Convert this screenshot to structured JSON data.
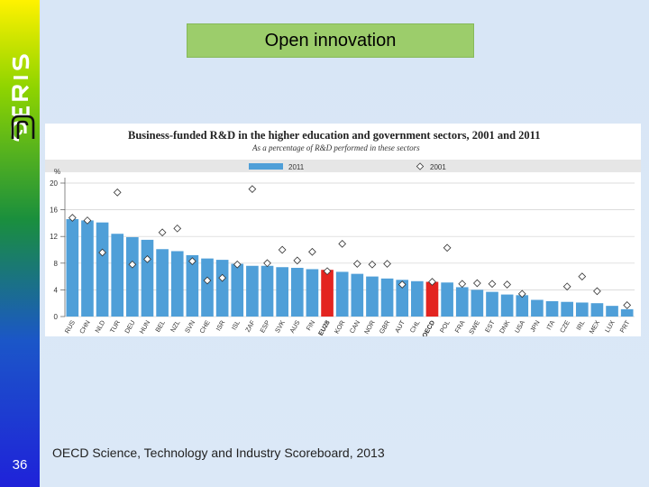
{
  "slide": {
    "title": "Open innovation",
    "number": "36",
    "source": "OECD Science, Technology and Industry Scoreboard, 2013",
    "brand": "CERIS"
  },
  "chart_data": {
    "type": "bar",
    "title": "Business-funded R&D in the higher education and government sectors, 2001 and 2011",
    "subtitle": "As a percentage of R&D performed in these sectors",
    "ylabel": "%",
    "ylim": [
      0,
      20
    ],
    "yticks": [
      0,
      4,
      8,
      12,
      16,
      20
    ],
    "legend_position": "top",
    "categories": [
      "RUS",
      "CHN",
      "NLD",
      "TUR",
      "DEU",
      "HUN",
      "BEL",
      "NZL",
      "SVN",
      "CHE",
      "ISR",
      "ISL",
      "ZAF",
      "ESP",
      "SVK",
      "AUS",
      "FIN",
      "EU28",
      "KOR",
      "CAN",
      "NOR",
      "GBR",
      "AUT",
      "CHL",
      "OECD",
      "POL",
      "FRA",
      "SWE",
      "EST",
      "DNK",
      "USA",
      "JPN",
      "ITA",
      "CZE",
      "IRL",
      "MEX",
      "LUX",
      "PRT"
    ],
    "highlight": [
      "EU28",
      "OECD"
    ],
    "series": [
      {
        "name": "2011",
        "type": "bar",
        "color": "#4f9fd8",
        "highlight_color": "#e32420",
        "values": [
          14.6,
          14.4,
          14.1,
          12.4,
          11.9,
          11.5,
          10.1,
          9.8,
          9.2,
          8.7,
          8.5,
          7.9,
          7.6,
          7.6,
          7.4,
          7.3,
          7.1,
          7.0,
          6.7,
          6.4,
          6.0,
          5.7,
          5.5,
          5.3,
          5.2,
          5.1,
          4.4,
          4.0,
          3.7,
          3.3,
          3.2,
          2.5,
          2.3,
          2.2,
          2.1,
          2.0,
          1.6,
          1.1
        ]
      },
      {
        "name": "2001",
        "type": "marker",
        "marker": "diamond",
        "values": [
          14.8,
          14.4,
          9.6,
          18.6,
          7.8,
          8.6,
          12.6,
          13.2,
          8.3,
          5.4,
          5.8,
          7.8,
          19.1,
          8.0,
          10.0,
          8.4,
          9.7,
          6.8,
          10.9,
          7.9,
          7.8,
          7.9,
          4.8,
          null,
          5.2,
          10.3,
          4.9,
          5.0,
          4.9,
          4.8,
          3.4,
          null,
          null,
          4.5,
          6.0,
          3.8,
          null,
          1.7
        ]
      }
    ],
    "colors": {
      "grid_band": "#e4e4e4",
      "bar": "#4f9fd8",
      "highlight": "#e32420"
    }
  }
}
